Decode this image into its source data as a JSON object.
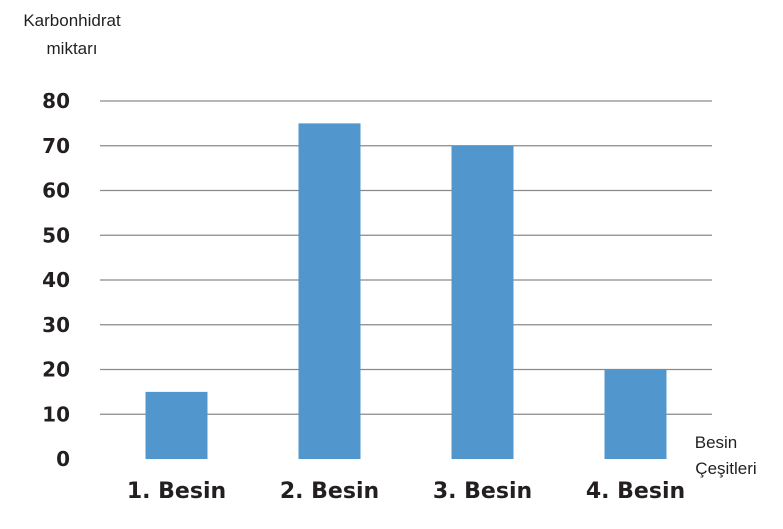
{
  "chart_data": {
    "type": "bar",
    "ylabel_lines": [
      "Karbonhidrat",
      "miktarı"
    ],
    "xlabel_lines": [
      "Besin",
      "Çeşitleri"
    ],
    "categories": [
      "1. Besin",
      "2. Besin",
      "3. Besin",
      "4. Besin"
    ],
    "values": [
      15,
      75,
      70,
      20
    ],
    "ylim": [
      0,
      80
    ],
    "yticks": [
      "0",
      "10",
      "20",
      "30",
      "40",
      "50",
      "60",
      "70",
      "80"
    ],
    "grid": true,
    "colors": {
      "bar": "#5197cd",
      "grid": "#8a8a8a",
      "text": "#231f20"
    }
  }
}
